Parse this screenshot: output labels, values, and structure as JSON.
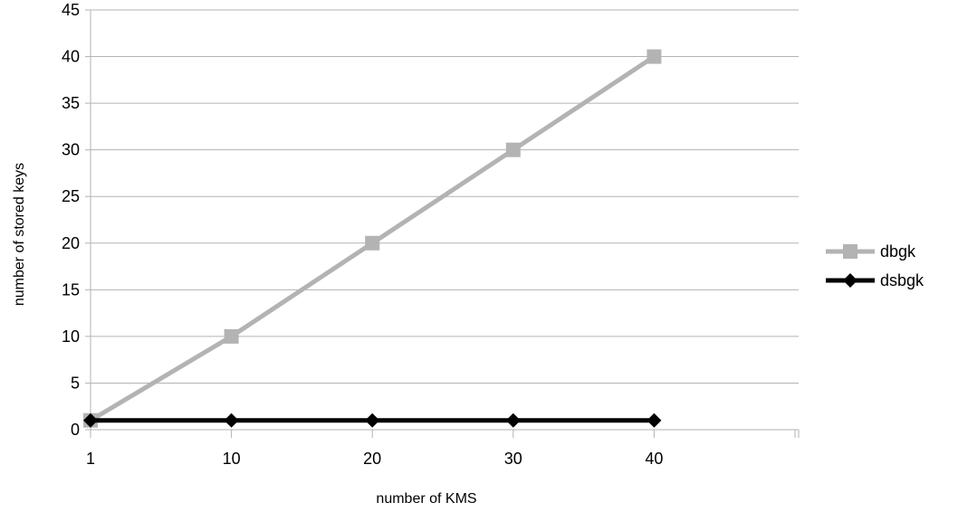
{
  "chart_data": {
    "type": "line",
    "categories": [
      "1",
      "10",
      "20",
      "30",
      "40"
    ],
    "series": [
      {
        "name": "dbgk",
        "values": [
          1,
          10,
          20,
          30,
          40
        ],
        "color": "#b3b3b3",
        "marker": "square"
      },
      {
        "name": "dsbgk",
        "values": [
          1,
          1,
          1,
          1,
          1
        ],
        "color": "#000000",
        "marker": "diamond"
      }
    ],
    "xlabel": "number of KMS",
    "ylabel": "number of stored keys",
    "ylim": [
      0,
      45
    ],
    "yticks": [
      "0",
      "5",
      "10",
      "15",
      "20",
      "25",
      "30",
      "35",
      "40",
      "45"
    ],
    "grid": "horizontal",
    "legend_position": "right"
  }
}
